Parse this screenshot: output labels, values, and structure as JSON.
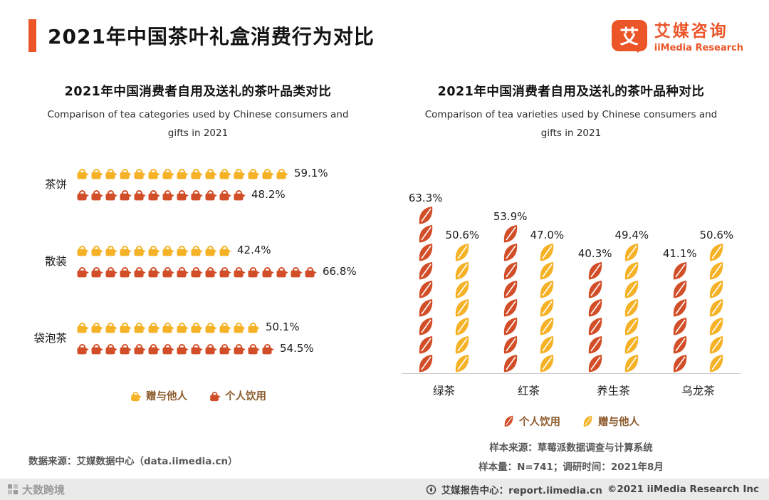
{
  "header": {
    "title": "2021年中国茶叶礼盒消费行为对比",
    "brand": {
      "symbol": "艾",
      "name_cn": "艾媒咨询",
      "name_en": "iiMedia Research"
    }
  },
  "colors": {
    "accent": "#EB5528",
    "gift_series": "#F5B226",
    "personal_series": "#D24E28"
  },
  "chart_data": [
    {
      "type": "bar",
      "pictogram": "teapot",
      "orientation": "horizontal",
      "title": "2021年中国消费者自用及送礼的茶叶品类对比",
      "subtitle": "Comparison of tea categories used by Chinese consumers and gifts in 2021",
      "categories": [
        "茶饼",
        "散装",
        "袋泡茶"
      ],
      "series": [
        {
          "name": "赠与他人",
          "color": "#F5B226",
          "values": [
            59.1,
            42.4,
            50.1
          ],
          "labels": [
            "59.1%",
            "42.4%",
            "50.1%"
          ]
        },
        {
          "name": "个人饮用",
          "color": "#D24E28",
          "values": [
            48.2,
            66.8,
            54.5
          ],
          "labels": [
            "48.2%",
            "66.8%",
            "54.5%"
          ]
        }
      ],
      "percent_per_icon": 4,
      "xlim": [
        0,
        70
      ],
      "legend_position": "bottom",
      "grid": false,
      "source": "数据来源：艾媒数据中心（data.iimedia.cn）"
    },
    {
      "type": "bar",
      "pictogram": "leaf",
      "orientation": "vertical",
      "title": "2021年中国消费者自用及送礼的茶叶品种对比",
      "subtitle": "Comparison of tea varieties used by Chinese consumers and gifts in 2021",
      "categories": [
        "绿茶",
        "红茶",
        "养生茶",
        "乌龙茶"
      ],
      "series": [
        {
          "name": "个人饮用",
          "color": "#D24E28",
          "values": [
            63.3,
            53.9,
            40.3,
            41.1
          ],
          "labels": [
            "63.3%",
            "53.9%",
            "40.3%",
            "41.1%"
          ]
        },
        {
          "name": "赠与他人",
          "color": "#F5B226",
          "values": [
            50.6,
            47.0,
            49.4,
            50.6
          ],
          "labels": [
            "50.6%",
            "47.0%",
            "49.4%",
            "50.6%"
          ]
        }
      ],
      "percent_per_icon": 7,
      "ylim": [
        0,
        70
      ],
      "legend_position": "bottom",
      "grid": false,
      "notes": [
        "样本来源：草莓派数据调查与计算系统",
        "样本量：N=741；调研时间：2021年8月"
      ]
    }
  ],
  "footer": {
    "watermark": "大数跨境",
    "report_center": "艾媒报告中心：report.iimedia.cn",
    "copyright": "©2021  iiMedia Research Inc"
  }
}
